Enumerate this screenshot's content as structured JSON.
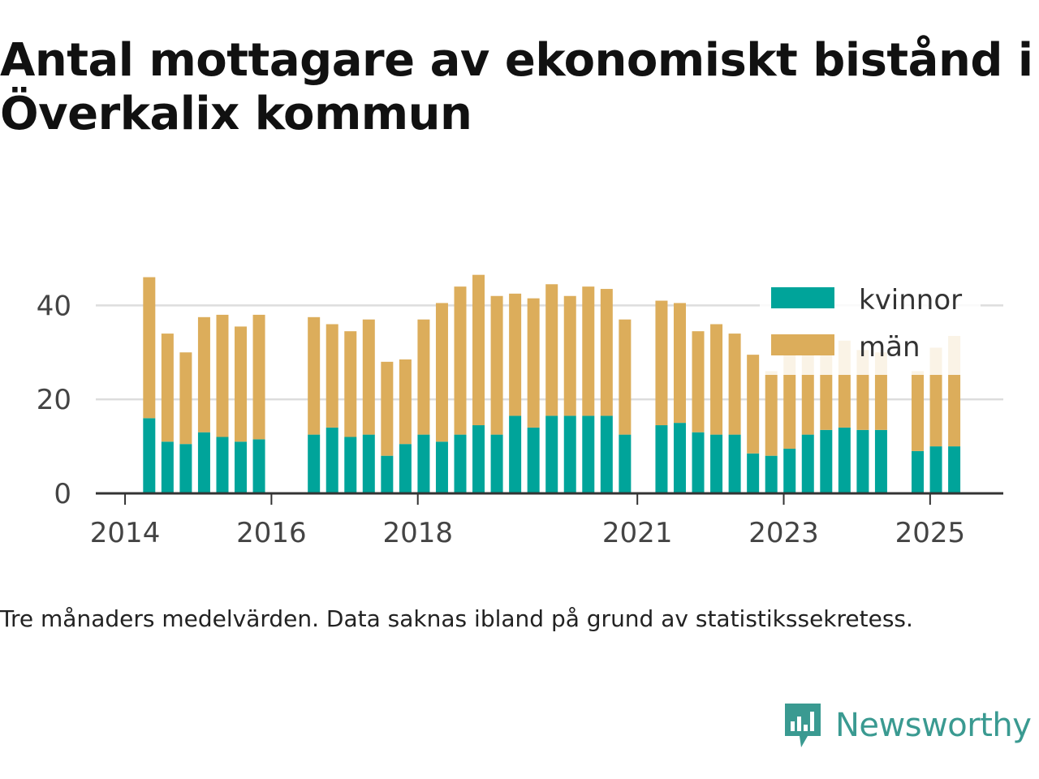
{
  "title": "Antal mottagare av ekonomiskt bistånd i Överkalix kommun",
  "footnote": "Tre månaders medelvärden. Data saknas ibland på grund av statistikssekretess.",
  "brand": {
    "name": "Newsworthy",
    "icon": "newsworthy-logo-icon"
  },
  "colors": {
    "kvinnor": "#00a49a",
    "man": "#dcad5b",
    "grid": "#dddddd",
    "axis": "#333333"
  },
  "chart_data": {
    "type": "bar",
    "stacked": true,
    "grid": true,
    "legend_position": "top-right",
    "xlim": [
      2013.6,
      2026.0
    ],
    "ylim": [
      0,
      48
    ],
    "x_ticks": [
      2014,
      2016,
      2018,
      2021,
      2023,
      2025
    ],
    "x_tick_labels": [
      "2014",
      "2016",
      "2018",
      "2021",
      "2023",
      "2025"
    ],
    "y_ticks": [
      0,
      20,
      40
    ],
    "y_tick_labels": [
      "0",
      "20",
      "40"
    ],
    "x": [
      2014.33,
      2014.58,
      2014.83,
      2015.08,
      2015.33,
      2015.58,
      2015.83,
      2016.58,
      2016.83,
      2017.08,
      2017.33,
      2017.58,
      2017.83,
      2018.08,
      2018.33,
      2018.58,
      2018.83,
      2019.08,
      2019.33,
      2019.58,
      2019.83,
      2020.08,
      2020.33,
      2020.58,
      2020.83,
      2021.33,
      2021.58,
      2021.83,
      2022.08,
      2022.33,
      2022.58,
      2022.83,
      2023.08,
      2023.33,
      2023.58,
      2023.83,
      2024.08,
      2024.33,
      2024.83,
      2025.08,
      2025.33
    ],
    "series": [
      {
        "name": "kvinnor",
        "values": [
          16,
          11,
          10.5,
          13,
          12,
          11,
          11.5,
          12.5,
          14,
          12,
          12.5,
          8,
          10.5,
          12.5,
          11,
          12.5,
          14.5,
          12.5,
          16.5,
          14,
          16.5,
          16.5,
          16.5,
          16.5,
          12.5,
          14.5,
          15,
          13,
          12.5,
          12.5,
          8.5,
          8,
          9.5,
          12.5,
          13.5,
          14,
          13.5,
          13.5,
          9,
          10,
          10
        ]
      },
      {
        "name": "män",
        "values": [
          30,
          23,
          19.5,
          24.5,
          26,
          24.5,
          26.5,
          25,
          22,
          22.5,
          24.5,
          20,
          18,
          24.5,
          29.5,
          31.5,
          32,
          29.5,
          26,
          27.5,
          28,
          25.5,
          27.5,
          27,
          24.5,
          26.5,
          25.5,
          21.5,
          23.5,
          21.5,
          21,
          18,
          20,
          18,
          18,
          18.5,
          17,
          16.5,
          17,
          21,
          23.5
        ]
      }
    ]
  }
}
